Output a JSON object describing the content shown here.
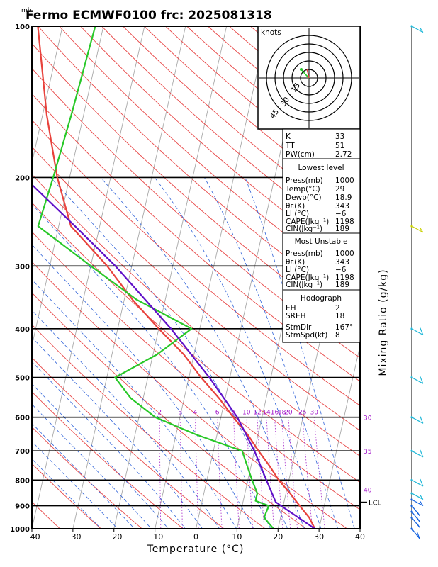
{
  "title": "Fermo ECMWF0100 frc: 2025081318",
  "chart_data": {
    "type": "line",
    "title": "Fermo ECMWF0100 frc: 2025081318",
    "pressure_unit": "mb",
    "xlabel": "Temperature (°C)",
    "ylabel_right": "Mixing Ratio (g/kg)",
    "xlim": [
      -40,
      40
    ],
    "ylim": [
      1000,
      100
    ],
    "x_ticks": [
      "−40",
      "−30",
      "−20",
      "−10",
      "0",
      "10",
      "20",
      "30",
      "40"
    ],
    "pressure_levels": [
      1000,
      900,
      800,
      700,
      600,
      500,
      400,
      300,
      200,
      100
    ],
    "mixing_ratio_labels": [
      "2",
      "3",
      "4",
      "6",
      "8",
      "10",
      "12",
      "14",
      "16",
      "18",
      "20",
      "25",
      "30"
    ],
    "edge_labels": [
      "30",
      "35",
      "40"
    ],
    "series": [
      {
        "name": "temperature",
        "color": "#e8423c",
        "points": [
          [
            1000,
            29
          ],
          [
            950,
            27
          ],
          [
            900,
            24
          ],
          [
            850,
            21
          ],
          [
            800,
            17.5
          ],
          [
            750,
            14.5
          ],
          [
            700,
            11
          ],
          [
            650,
            7.5
          ],
          [
            600,
            3
          ],
          [
            550,
            -1.5
          ],
          [
            500,
            -7
          ],
          [
            450,
            -12.5
          ],
          [
            400,
            -20
          ],
          [
            350,
            -28
          ],
          [
            300,
            -36
          ],
          [
            250,
            -47
          ],
          [
            200,
            -53
          ],
          [
            150,
            -59
          ],
          [
            100,
            -66
          ]
        ]
      },
      {
        "name": "dewpoint",
        "color": "#28c828",
        "points": [
          [
            1000,
            18.9
          ],
          [
            950,
            16
          ],
          [
            900,
            16.5
          ],
          [
            880,
            13
          ],
          [
            850,
            13
          ],
          [
            800,
            11
          ],
          [
            700,
            7
          ],
          [
            650,
            -5
          ],
          [
            600,
            -16
          ],
          [
            550,
            -23
          ],
          [
            500,
            -28
          ],
          [
            450,
            -19
          ],
          [
            400,
            -12
          ],
          [
            350,
            -27
          ],
          [
            300,
            -40
          ],
          [
            250,
            -55
          ],
          [
            200,
            -54
          ],
          [
            150,
            -53
          ],
          [
            100,
            -52
          ]
        ]
      },
      {
        "name": "parcel",
        "color": "#6010c8",
        "points": [
          [
            1000,
            29
          ],
          [
            900,
            19.5
          ],
          [
            885,
            18
          ],
          [
            800,
            14.5
          ],
          [
            700,
            10
          ],
          [
            600,
            4
          ],
          [
            500,
            -5
          ],
          [
            400,
            -17
          ],
          [
            300,
            -34
          ],
          [
            250,
            -46
          ],
          [
            200,
            -61
          ],
          [
            150,
            -79
          ],
          [
            100,
            -99
          ]
        ]
      }
    ],
    "lcl": {
      "label": "LCL",
      "pressure": 885
    },
    "wind_barbs_kt": [
      {
        "p": 1000,
        "spd": 10
      },
      {
        "p": 950,
        "spd": 5
      },
      {
        "p": 925,
        "spd": 5
      },
      {
        "p": 900,
        "spd": 5
      },
      {
        "p": 875,
        "spd": 5
      },
      {
        "p": 850,
        "spd": 5
      },
      {
        "p": 800,
        "spd": 10
      },
      {
        "p": 700,
        "spd": 10
      },
      {
        "p": 600,
        "spd": 10
      },
      {
        "p": 500,
        "spd": 10
      },
      {
        "p": 400,
        "spd": 10
      },
      {
        "p": 250,
        "spd": 5
      },
      {
        "p": 100,
        "spd": 5
      }
    ],
    "hodograph": {
      "units": "knots",
      "ring_labels": [
        "15",
        "30",
        "45"
      ]
    },
    "indices": {
      "k": {
        "label": "K",
        "value": "33"
      },
      "tt": {
        "label": "TT",
        "value": "51"
      },
      "pw": {
        "label": "PW(cm)",
        "value": "2.72"
      },
      "lowest": {
        "header": "Lowest level",
        "rows": [
          {
            "label": "Press(mb)",
            "value": "1000"
          },
          {
            "label": "Temp(°C)",
            "value": "29"
          },
          {
            "label": "Dewp(°C)",
            "value": "18.9"
          },
          {
            "label": "θε(K)",
            "value": "343"
          },
          {
            "label": "LI (°C)",
            "value": "−6"
          },
          {
            "label": "CAPE(Jkg⁻¹)",
            "value": "1198"
          },
          {
            "label": "CIN(Jkg⁻¹)",
            "value": "189"
          }
        ]
      },
      "unstable": {
        "header": "Most Unstable",
        "rows": [
          {
            "label": "Press(mb)",
            "value": "1000"
          },
          {
            "label": "θε(K)",
            "value": "343"
          },
          {
            "label": "LI (°C)",
            "value": "−6"
          },
          {
            "label": "CAPE(Jkg⁻¹)",
            "value": "1198"
          },
          {
            "label": "CIN(Jkg⁻¹)",
            "value": "189"
          }
        ]
      },
      "hodo": {
        "header": "Hodograph",
        "rows": [
          {
            "label": "EH",
            "value": "2"
          },
          {
            "label": "SREH",
            "value": "18"
          },
          {
            "label": "StmDir",
            "value": "167°"
          },
          {
            "label": "StmSpd(kt)",
            "value": "8"
          }
        ]
      }
    }
  }
}
